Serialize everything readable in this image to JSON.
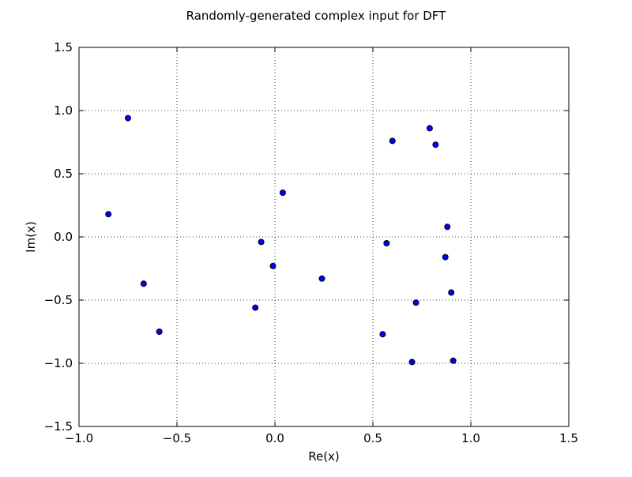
{
  "chart_data": {
    "type": "scatter",
    "title": "Randomly-generated complex input for DFT",
    "xlabel": "Re(x)",
    "ylabel": "Im(x)",
    "xlim": [
      -1.0,
      1.5
    ],
    "ylim": [
      -1.5,
      1.5
    ],
    "xticks": [
      -1.0,
      -0.5,
      0.0,
      0.5,
      1.0,
      1.5
    ],
    "yticks": [
      -1.5,
      -1.0,
      -0.5,
      0.0,
      0.5,
      1.0,
      1.5
    ],
    "xtick_labels": [
      "−1.0",
      "−0.5",
      "0.0",
      "0.5",
      "1.0",
      "1.5"
    ],
    "ytick_labels": [
      "−1.5",
      "−1.0",
      "−0.5",
      "0.0",
      "0.5",
      "1.0",
      "1.5"
    ],
    "grid": true,
    "series": [
      {
        "marker_color": "#0000ff",
        "edge_color": "#000000",
        "points": [
          {
            "x": -0.75,
            "y": 0.94
          },
          {
            "x": -0.85,
            "y": 0.18
          },
          {
            "x": -0.67,
            "y": -0.37
          },
          {
            "x": -0.59,
            "y": -0.75
          },
          {
            "x": 0.04,
            "y": 0.35
          },
          {
            "x": -0.07,
            "y": -0.04
          },
          {
            "x": -0.01,
            "y": -0.23
          },
          {
            "x": -0.1,
            "y": -0.56
          },
          {
            "x": 0.24,
            "y": -0.33
          },
          {
            "x": 0.6,
            "y": 0.76
          },
          {
            "x": 0.79,
            "y": 0.86
          },
          {
            "x": 0.82,
            "y": 0.73
          },
          {
            "x": 0.88,
            "y": 0.08
          },
          {
            "x": 0.57,
            "y": -0.05
          },
          {
            "x": 0.87,
            "y": -0.16
          },
          {
            "x": 0.9,
            "y": -0.44
          },
          {
            "x": 0.72,
            "y": -0.52
          },
          {
            "x": 0.55,
            "y": -0.77
          },
          {
            "x": 0.7,
            "y": -0.99
          },
          {
            "x": 0.91,
            "y": -0.98
          }
        ]
      }
    ]
  }
}
